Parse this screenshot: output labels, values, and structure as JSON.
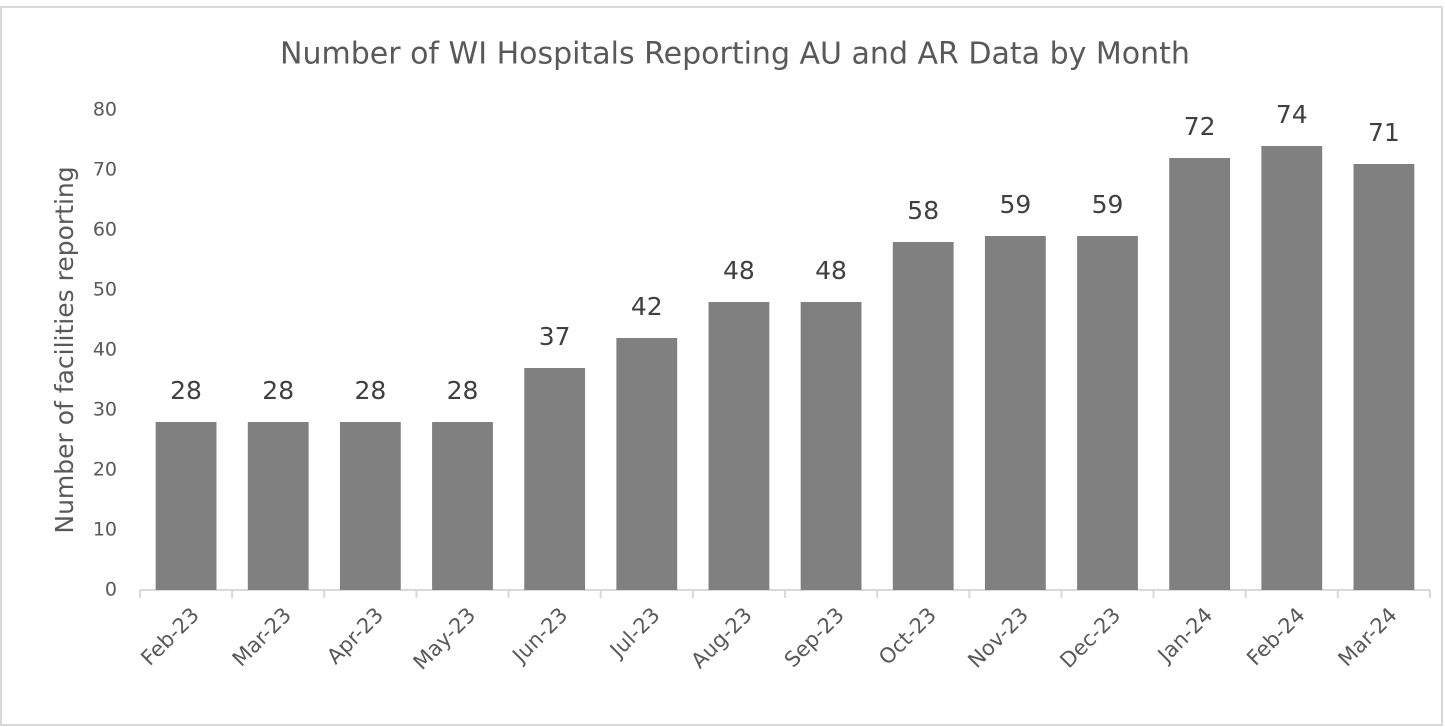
{
  "chart_data": {
    "type": "bar",
    "title": "Number of WI Hospitals Reporting AU and AR Data by Month",
    "y_label": "Number of facilities reporting",
    "categories": [
      "Feb-23",
      "Mar-23",
      "Apr-23",
      "May-23",
      "Jun-23",
      "Jul-23",
      "Aug-23",
      "Sep-23",
      "Oct-23",
      "Nov-23",
      "Dec-23",
      "Jan-24",
      "Feb-24",
      "Mar-24"
    ],
    "values": [
      28,
      28,
      28,
      28,
      37,
      42,
      48,
      48,
      58,
      59,
      59,
      72,
      74,
      71
    ],
    "color": "#808080",
    "ylim": [
      0,
      80
    ],
    "yticks": [
      0,
      10,
      20,
      30,
      40,
      50,
      60,
      70,
      80
    ],
    "grid": false
  }
}
